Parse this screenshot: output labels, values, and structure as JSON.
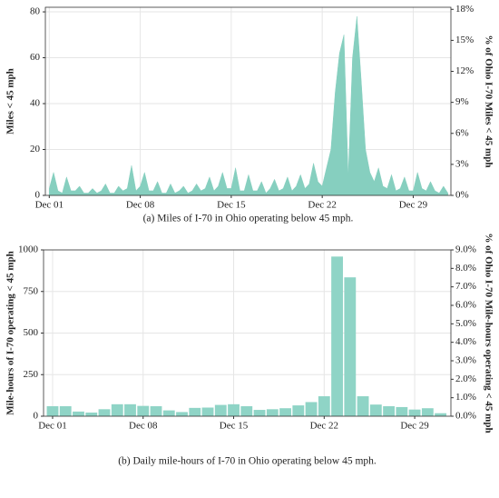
{
  "chart_data": [
    {
      "type": "area",
      "color": "#86cfbf",
      "grid": true,
      "ylabel": "Miles < 45 mph",
      "y2label": "% of Ohio I-70 Miles < 45 mph",
      "caption": "(a) Miles of I-70 in Ohio operating below 45 mph.",
      "x": [
        1,
        1.33,
        1.67,
        2,
        2.33,
        2.67,
        3,
        3.33,
        3.67,
        4,
        4.33,
        4.67,
        5,
        5.33,
        5.67,
        6,
        6.33,
        6.67,
        7,
        7.33,
        7.67,
        8,
        8.33,
        8.67,
        9,
        9.33,
        9.67,
        10,
        10.33,
        10.67,
        11,
        11.33,
        11.67,
        12,
        12.33,
        12.67,
        13,
        13.33,
        13.67,
        14,
        14.33,
        14.67,
        15,
        15.33,
        15.67,
        16,
        16.33,
        16.67,
        17,
        17.33,
        17.67,
        18,
        18.33,
        18.67,
        19,
        19.33,
        19.67,
        20,
        20.33,
        20.67,
        21,
        21.33,
        21.67,
        22,
        22.33,
        22.67,
        23,
        23.33,
        23.67,
        24,
        24.33,
        24.67,
        25,
        25.33,
        25.67,
        26,
        26.33,
        26.67,
        27,
        27.33,
        27.67,
        28,
        28.33,
        28.67,
        29,
        29.33,
        29.67,
        30,
        30.33,
        30.67,
        31,
        31.33,
        31.67
      ],
      "values": [
        3,
        10,
        2,
        1,
        8,
        2,
        2,
        4,
        1,
        1,
        3,
        1,
        2,
        5,
        1,
        1,
        4,
        2,
        3,
        13,
        2,
        4,
        10,
        2,
        2,
        6,
        1,
        1,
        5,
        1,
        2,
        4,
        1,
        2,
        5,
        2,
        3,
        8,
        2,
        4,
        10,
        3,
        3,
        12,
        2,
        2,
        9,
        2,
        2,
        6,
        1,
        3,
        7,
        2,
        3,
        8,
        2,
        4,
        9,
        3,
        5,
        14,
        6,
        4,
        12,
        20,
        45,
        62,
        70,
        8,
        60,
        78,
        50,
        20,
        10,
        6,
        12,
        4,
        3,
        9,
        2,
        3,
        8,
        2,
        2,
        10,
        3,
        2,
        6,
        2,
        1,
        4,
        1
      ],
      "xlim": [
        0.7,
        31.9
      ],
      "xticks": [
        {
          "value": 1,
          "label": "Dec 01"
        },
        {
          "value": 8,
          "label": "Dec 08"
        },
        {
          "value": 15,
          "label": "Dec 15"
        },
        {
          "value": 22,
          "label": "Dec 22"
        },
        {
          "value": 29,
          "label": "Dec 29"
        }
      ],
      "ylim": [
        0,
        82
      ],
      "yticks": [
        0,
        20,
        40,
        60,
        80
      ],
      "y2lim": [
        0,
        18.2
      ],
      "y2ticks": [
        {
          "value": 0,
          "label": "0%"
        },
        {
          "value": 3,
          "label": "3%"
        },
        {
          "value": 6,
          "label": "6%"
        },
        {
          "value": 9,
          "label": "9%"
        },
        {
          "value": 12,
          "label": "12%"
        },
        {
          "value": 15,
          "label": "15%"
        },
        {
          "value": 18,
          "label": "18%"
        }
      ]
    },
    {
      "type": "bar",
      "color": "#8fd4c6",
      "grid": true,
      "ylabel": "Mile-hours of I-70 operating < 45 mph",
      "y2label": "% of Ohio I-70 Mile-hours operating < 45 mph",
      "caption": "(b) Daily mile-hours of I-70 in Ohio operating below 45 mph.",
      "x": [
        1,
        2,
        3,
        4,
        5,
        6,
        7,
        8,
        9,
        10,
        11,
        12,
        13,
        14,
        15,
        16,
        17,
        18,
        19,
        20,
        21,
        22,
        23,
        24,
        25,
        26,
        27,
        28,
        29,
        30,
        31
      ],
      "values": [
        60,
        60,
        28,
        22,
        42,
        72,
        72,
        62,
        60,
        35,
        25,
        50,
        52,
        68,
        72,
        60,
        38,
        42,
        48,
        65,
        85,
        120,
        960,
        835,
        120,
        70,
        60,
        55,
        40,
        48,
        18
      ],
      "xlim": [
        0.3,
        31.8
      ],
      "xticks": [
        {
          "value": 1,
          "label": "Dec 01"
        },
        {
          "value": 8,
          "label": "Dec 08"
        },
        {
          "value": 15,
          "label": "Dec 15"
        },
        {
          "value": 22,
          "label": "Dec 22"
        },
        {
          "value": 29,
          "label": "Dec 29"
        }
      ],
      "ylim": [
        0,
        1000
      ],
      "yticks": [
        0,
        250,
        500,
        750,
        1000
      ],
      "y2lim": [
        0,
        9.0
      ],
      "y2ticks": [
        {
          "value": 0,
          "label": "0.0%"
        },
        {
          "value": 1,
          "label": "1.0%"
        },
        {
          "value": 2,
          "label": "2.0%"
        },
        {
          "value": 3,
          "label": "3.0%"
        },
        {
          "value": 4,
          "label": "4.0%"
        },
        {
          "value": 5,
          "label": "5.0%"
        },
        {
          "value": 6,
          "label": "6.0%"
        },
        {
          "value": 7,
          "label": "7.0%"
        },
        {
          "value": 8,
          "label": "8.0%"
        },
        {
          "value": 9,
          "label": "9.0%"
        }
      ]
    }
  ]
}
